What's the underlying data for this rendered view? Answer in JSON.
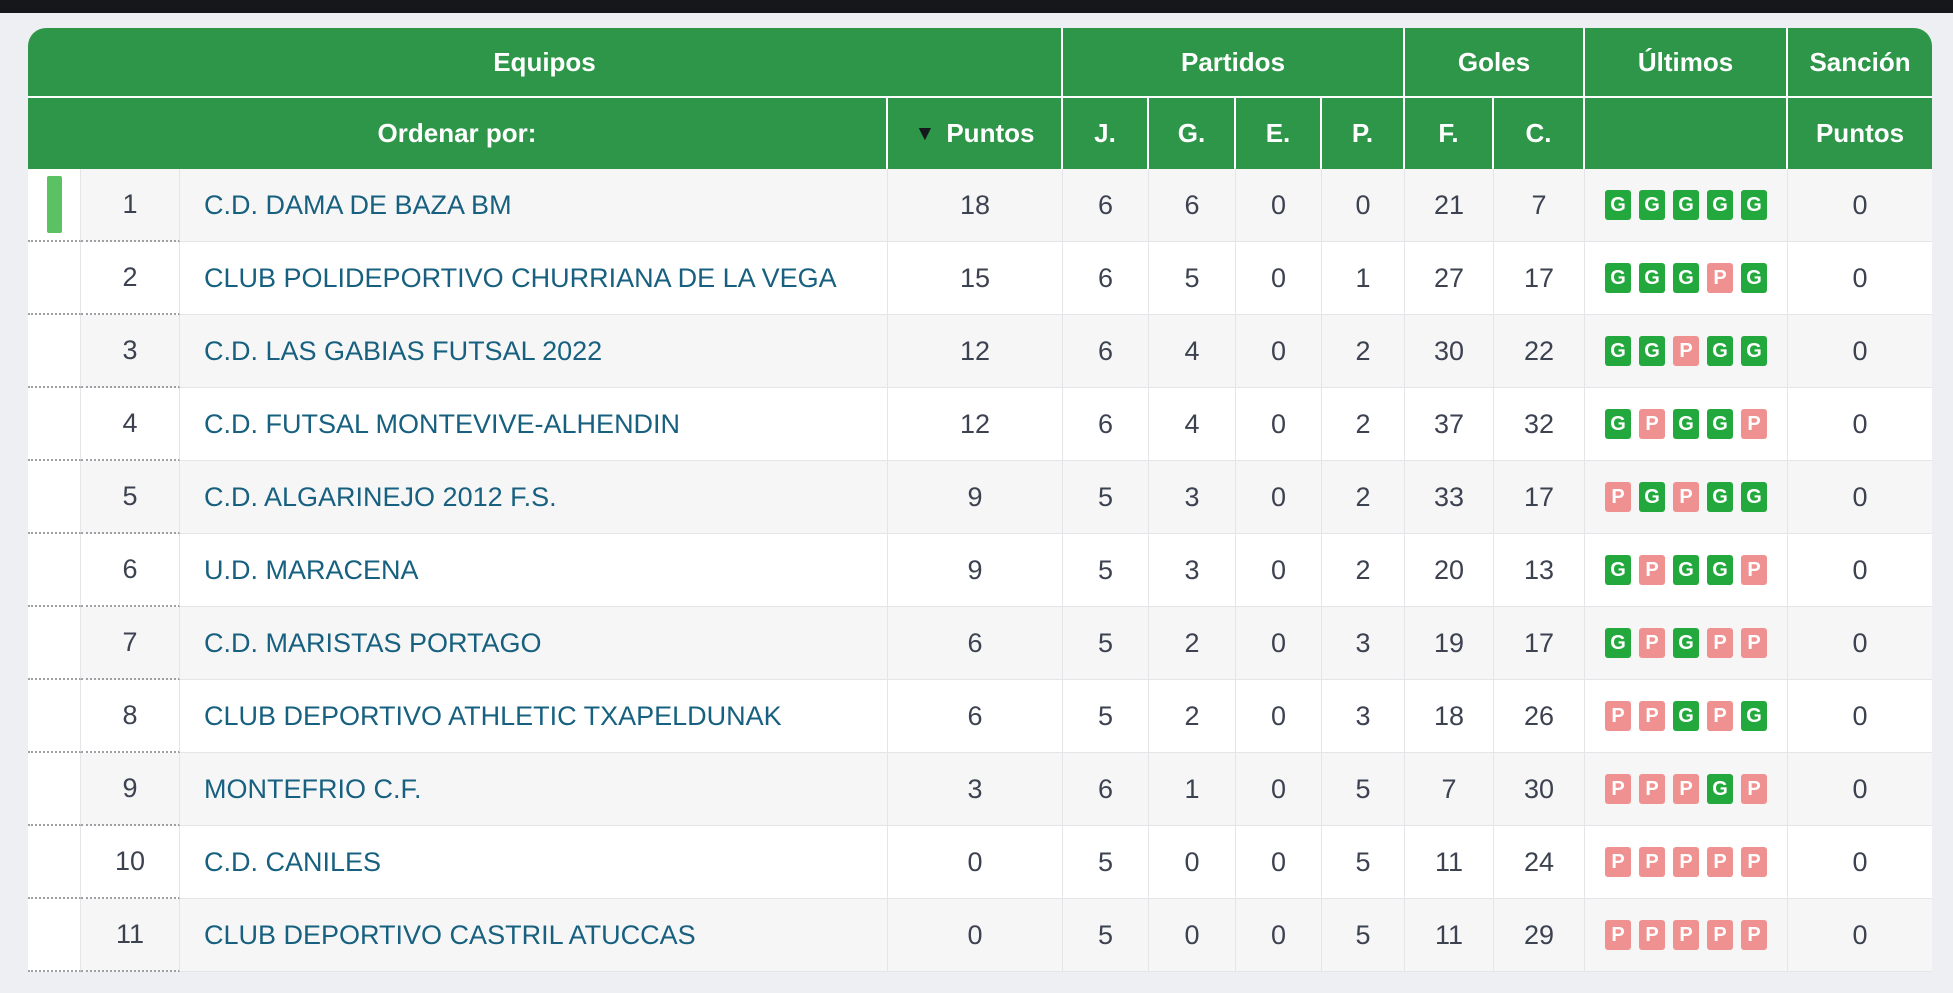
{
  "page": {
    "background_color": "#edeff2",
    "topbar_color": "#15171a"
  },
  "table": {
    "colors": {
      "header_green": "#2e9649",
      "badge_win_green": "#22a83c",
      "badge_loss_pink": "#f09191",
      "team_link_color": "#17607f",
      "promotion_indicator_green": "#5bc263"
    },
    "header": {
      "equipos": "Equipos",
      "partidos": "Partidos",
      "goles": "Goles",
      "ultimos": "Últimos",
      "sancion": "Sanción",
      "ordenar": "Ordenar por:",
      "sort_icon": "▼",
      "puntos": "Puntos",
      "j": "J.",
      "g": "G.",
      "e": "E.",
      "p": "P.",
      "f": "F.",
      "c": "C.",
      "ultimos_sub": "",
      "sancion_puntos": "Puntos"
    },
    "rows": [
      {
        "pos": "1",
        "team": "C.D. DAMA DE BAZA BM",
        "puntos": "18",
        "j": "6",
        "g": "6",
        "e": "0",
        "p": "0",
        "f": "21",
        "c": "7",
        "last5": [
          "G",
          "G",
          "G",
          "G",
          "G"
        ],
        "sancion": "0",
        "indicator": true
      },
      {
        "pos": "2",
        "team": "CLUB POLIDEPORTIVO CHURRIANA DE LA VEGA",
        "puntos": "15",
        "j": "6",
        "g": "5",
        "e": "0",
        "p": "1",
        "f": "27",
        "c": "17",
        "last5": [
          "G",
          "G",
          "G",
          "P",
          "G"
        ],
        "sancion": "0",
        "indicator": false
      },
      {
        "pos": "3",
        "team": "C.D. LAS GABIAS FUTSAL 2022",
        "puntos": "12",
        "j": "6",
        "g": "4",
        "e": "0",
        "p": "2",
        "f": "30",
        "c": "22",
        "last5": [
          "G",
          "G",
          "P",
          "G",
          "G"
        ],
        "sancion": "0",
        "indicator": false
      },
      {
        "pos": "4",
        "team": "C.D. FUTSAL MONTEVIVE-ALHENDIN",
        "puntos": "12",
        "j": "6",
        "g": "4",
        "e": "0",
        "p": "2",
        "f": "37",
        "c": "32",
        "last5": [
          "G",
          "P",
          "G",
          "G",
          "P"
        ],
        "sancion": "0",
        "indicator": false
      },
      {
        "pos": "5",
        "team": "C.D. ALGARINEJO 2012 F.S.",
        "puntos": "9",
        "j": "5",
        "g": "3",
        "e": "0",
        "p": "2",
        "f": "33",
        "c": "17",
        "last5": [
          "P",
          "G",
          "P",
          "G",
          "G"
        ],
        "sancion": "0",
        "indicator": false
      },
      {
        "pos": "6",
        "team": "U.D. MARACENA",
        "puntos": "9",
        "j": "5",
        "g": "3",
        "e": "0",
        "p": "2",
        "f": "20",
        "c": "13",
        "last5": [
          "G",
          "P",
          "G",
          "G",
          "P"
        ],
        "sancion": "0",
        "indicator": false
      },
      {
        "pos": "7",
        "team": "C.D. MARISTAS PORTAGO",
        "puntos": "6",
        "j": "5",
        "g": "2",
        "e": "0",
        "p": "3",
        "f": "19",
        "c": "17",
        "last5": [
          "G",
          "P",
          "G",
          "P",
          "P"
        ],
        "sancion": "0",
        "indicator": false
      },
      {
        "pos": "8",
        "team": "CLUB DEPORTIVO ATHLETIC TXAPELDUNAK",
        "puntos": "6",
        "j": "5",
        "g": "2",
        "e": "0",
        "p": "3",
        "f": "18",
        "c": "26",
        "last5": [
          "P",
          "P",
          "G",
          "P",
          "G"
        ],
        "sancion": "0",
        "indicator": false
      },
      {
        "pos": "9",
        "team": "MONTEFRIO C.F.",
        "puntos": "3",
        "j": "6",
        "g": "1",
        "e": "0",
        "p": "5",
        "f": "7",
        "c": "30",
        "last5": [
          "P",
          "P",
          "P",
          "G",
          "P"
        ],
        "sancion": "0",
        "indicator": false
      },
      {
        "pos": "10",
        "team": "C.D. CANILES",
        "puntos": "0",
        "j": "5",
        "g": "0",
        "e": "0",
        "p": "5",
        "f": "11",
        "c": "24",
        "last5": [
          "P",
          "P",
          "P",
          "P",
          "P"
        ],
        "sancion": "0",
        "indicator": false
      },
      {
        "pos": "11",
        "team": "CLUB DEPORTIVO CASTRIL ATUCCAS",
        "puntos": "0",
        "j": "5",
        "g": "0",
        "e": "0",
        "p": "5",
        "f": "11",
        "c": "29",
        "last5": [
          "P",
          "P",
          "P",
          "P",
          "P"
        ],
        "sancion": "0",
        "indicator": false
      }
    ]
  }
}
